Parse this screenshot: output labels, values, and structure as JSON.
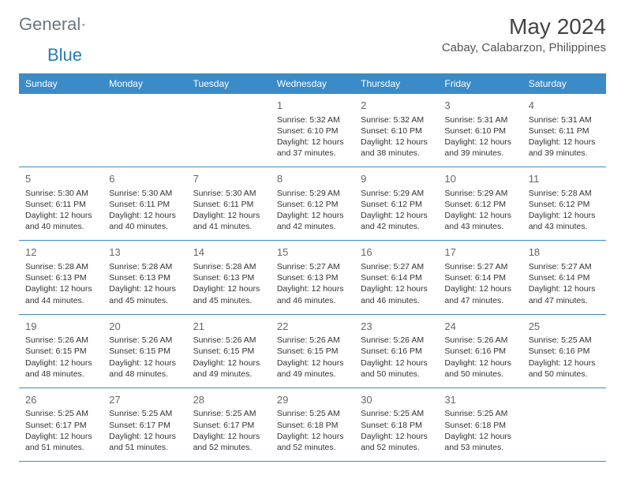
{
  "brand": {
    "name_part1": "General",
    "name_part2": "Blue",
    "color_gray": "#6b7680",
    "color_blue": "#2a7ab8"
  },
  "header": {
    "month_title": "May 2024",
    "location": "Cabay, Calabarzon, Philippines"
  },
  "colors": {
    "header_bg": "#3b8bc8",
    "header_text": "#ffffff",
    "border": "#3b8bc8",
    "background": "#ffffff",
    "text": "#333333",
    "daynum": "#666666"
  },
  "weekdays": [
    "Sunday",
    "Monday",
    "Tuesday",
    "Wednesday",
    "Thursday",
    "Friday",
    "Saturday"
  ],
  "weeks": [
    [
      {
        "day": "",
        "sunrise": "",
        "sunset": "",
        "daylight": ""
      },
      {
        "day": "",
        "sunrise": "",
        "sunset": "",
        "daylight": ""
      },
      {
        "day": "",
        "sunrise": "",
        "sunset": "",
        "daylight": ""
      },
      {
        "day": "1",
        "sunrise": "Sunrise: 5:32 AM",
        "sunset": "Sunset: 6:10 PM",
        "daylight": "Daylight: 12 hours and 37 minutes."
      },
      {
        "day": "2",
        "sunrise": "Sunrise: 5:32 AM",
        "sunset": "Sunset: 6:10 PM",
        "daylight": "Daylight: 12 hours and 38 minutes."
      },
      {
        "day": "3",
        "sunrise": "Sunrise: 5:31 AM",
        "sunset": "Sunset: 6:10 PM",
        "daylight": "Daylight: 12 hours and 39 minutes."
      },
      {
        "day": "4",
        "sunrise": "Sunrise: 5:31 AM",
        "sunset": "Sunset: 6:11 PM",
        "daylight": "Daylight: 12 hours and 39 minutes."
      }
    ],
    [
      {
        "day": "5",
        "sunrise": "Sunrise: 5:30 AM",
        "sunset": "Sunset: 6:11 PM",
        "daylight": "Daylight: 12 hours and 40 minutes."
      },
      {
        "day": "6",
        "sunrise": "Sunrise: 5:30 AM",
        "sunset": "Sunset: 6:11 PM",
        "daylight": "Daylight: 12 hours and 40 minutes."
      },
      {
        "day": "7",
        "sunrise": "Sunrise: 5:30 AM",
        "sunset": "Sunset: 6:11 PM",
        "daylight": "Daylight: 12 hours and 41 minutes."
      },
      {
        "day": "8",
        "sunrise": "Sunrise: 5:29 AM",
        "sunset": "Sunset: 6:12 PM",
        "daylight": "Daylight: 12 hours and 42 minutes."
      },
      {
        "day": "9",
        "sunrise": "Sunrise: 5:29 AM",
        "sunset": "Sunset: 6:12 PM",
        "daylight": "Daylight: 12 hours and 42 minutes."
      },
      {
        "day": "10",
        "sunrise": "Sunrise: 5:29 AM",
        "sunset": "Sunset: 6:12 PM",
        "daylight": "Daylight: 12 hours and 43 minutes."
      },
      {
        "day": "11",
        "sunrise": "Sunrise: 5:28 AM",
        "sunset": "Sunset: 6:12 PM",
        "daylight": "Daylight: 12 hours and 43 minutes."
      }
    ],
    [
      {
        "day": "12",
        "sunrise": "Sunrise: 5:28 AM",
        "sunset": "Sunset: 6:13 PM",
        "daylight": "Daylight: 12 hours and 44 minutes."
      },
      {
        "day": "13",
        "sunrise": "Sunrise: 5:28 AM",
        "sunset": "Sunset: 6:13 PM",
        "daylight": "Daylight: 12 hours and 45 minutes."
      },
      {
        "day": "14",
        "sunrise": "Sunrise: 5:28 AM",
        "sunset": "Sunset: 6:13 PM",
        "daylight": "Daylight: 12 hours and 45 minutes."
      },
      {
        "day": "15",
        "sunrise": "Sunrise: 5:27 AM",
        "sunset": "Sunset: 6:13 PM",
        "daylight": "Daylight: 12 hours and 46 minutes."
      },
      {
        "day": "16",
        "sunrise": "Sunrise: 5:27 AM",
        "sunset": "Sunset: 6:14 PM",
        "daylight": "Daylight: 12 hours and 46 minutes."
      },
      {
        "day": "17",
        "sunrise": "Sunrise: 5:27 AM",
        "sunset": "Sunset: 6:14 PM",
        "daylight": "Daylight: 12 hours and 47 minutes."
      },
      {
        "day": "18",
        "sunrise": "Sunrise: 5:27 AM",
        "sunset": "Sunset: 6:14 PM",
        "daylight": "Daylight: 12 hours and 47 minutes."
      }
    ],
    [
      {
        "day": "19",
        "sunrise": "Sunrise: 5:26 AM",
        "sunset": "Sunset: 6:15 PM",
        "daylight": "Daylight: 12 hours and 48 minutes."
      },
      {
        "day": "20",
        "sunrise": "Sunrise: 5:26 AM",
        "sunset": "Sunset: 6:15 PM",
        "daylight": "Daylight: 12 hours and 48 minutes."
      },
      {
        "day": "21",
        "sunrise": "Sunrise: 5:26 AM",
        "sunset": "Sunset: 6:15 PM",
        "daylight": "Daylight: 12 hours and 49 minutes."
      },
      {
        "day": "22",
        "sunrise": "Sunrise: 5:26 AM",
        "sunset": "Sunset: 6:15 PM",
        "daylight": "Daylight: 12 hours and 49 minutes."
      },
      {
        "day": "23",
        "sunrise": "Sunrise: 5:26 AM",
        "sunset": "Sunset: 6:16 PM",
        "daylight": "Daylight: 12 hours and 50 minutes."
      },
      {
        "day": "24",
        "sunrise": "Sunrise: 5:26 AM",
        "sunset": "Sunset: 6:16 PM",
        "daylight": "Daylight: 12 hours and 50 minutes."
      },
      {
        "day": "25",
        "sunrise": "Sunrise: 5:25 AM",
        "sunset": "Sunset: 6:16 PM",
        "daylight": "Daylight: 12 hours and 50 minutes."
      }
    ],
    [
      {
        "day": "26",
        "sunrise": "Sunrise: 5:25 AM",
        "sunset": "Sunset: 6:17 PM",
        "daylight": "Daylight: 12 hours and 51 minutes."
      },
      {
        "day": "27",
        "sunrise": "Sunrise: 5:25 AM",
        "sunset": "Sunset: 6:17 PM",
        "daylight": "Daylight: 12 hours and 51 minutes."
      },
      {
        "day": "28",
        "sunrise": "Sunrise: 5:25 AM",
        "sunset": "Sunset: 6:17 PM",
        "daylight": "Daylight: 12 hours and 52 minutes."
      },
      {
        "day": "29",
        "sunrise": "Sunrise: 5:25 AM",
        "sunset": "Sunset: 6:18 PM",
        "daylight": "Daylight: 12 hours and 52 minutes."
      },
      {
        "day": "30",
        "sunrise": "Sunrise: 5:25 AM",
        "sunset": "Sunset: 6:18 PM",
        "daylight": "Daylight: 12 hours and 52 minutes."
      },
      {
        "day": "31",
        "sunrise": "Sunrise: 5:25 AM",
        "sunset": "Sunset: 6:18 PM",
        "daylight": "Daylight: 12 hours and 53 minutes."
      },
      {
        "day": "",
        "sunrise": "",
        "sunset": "",
        "daylight": ""
      }
    ]
  ]
}
